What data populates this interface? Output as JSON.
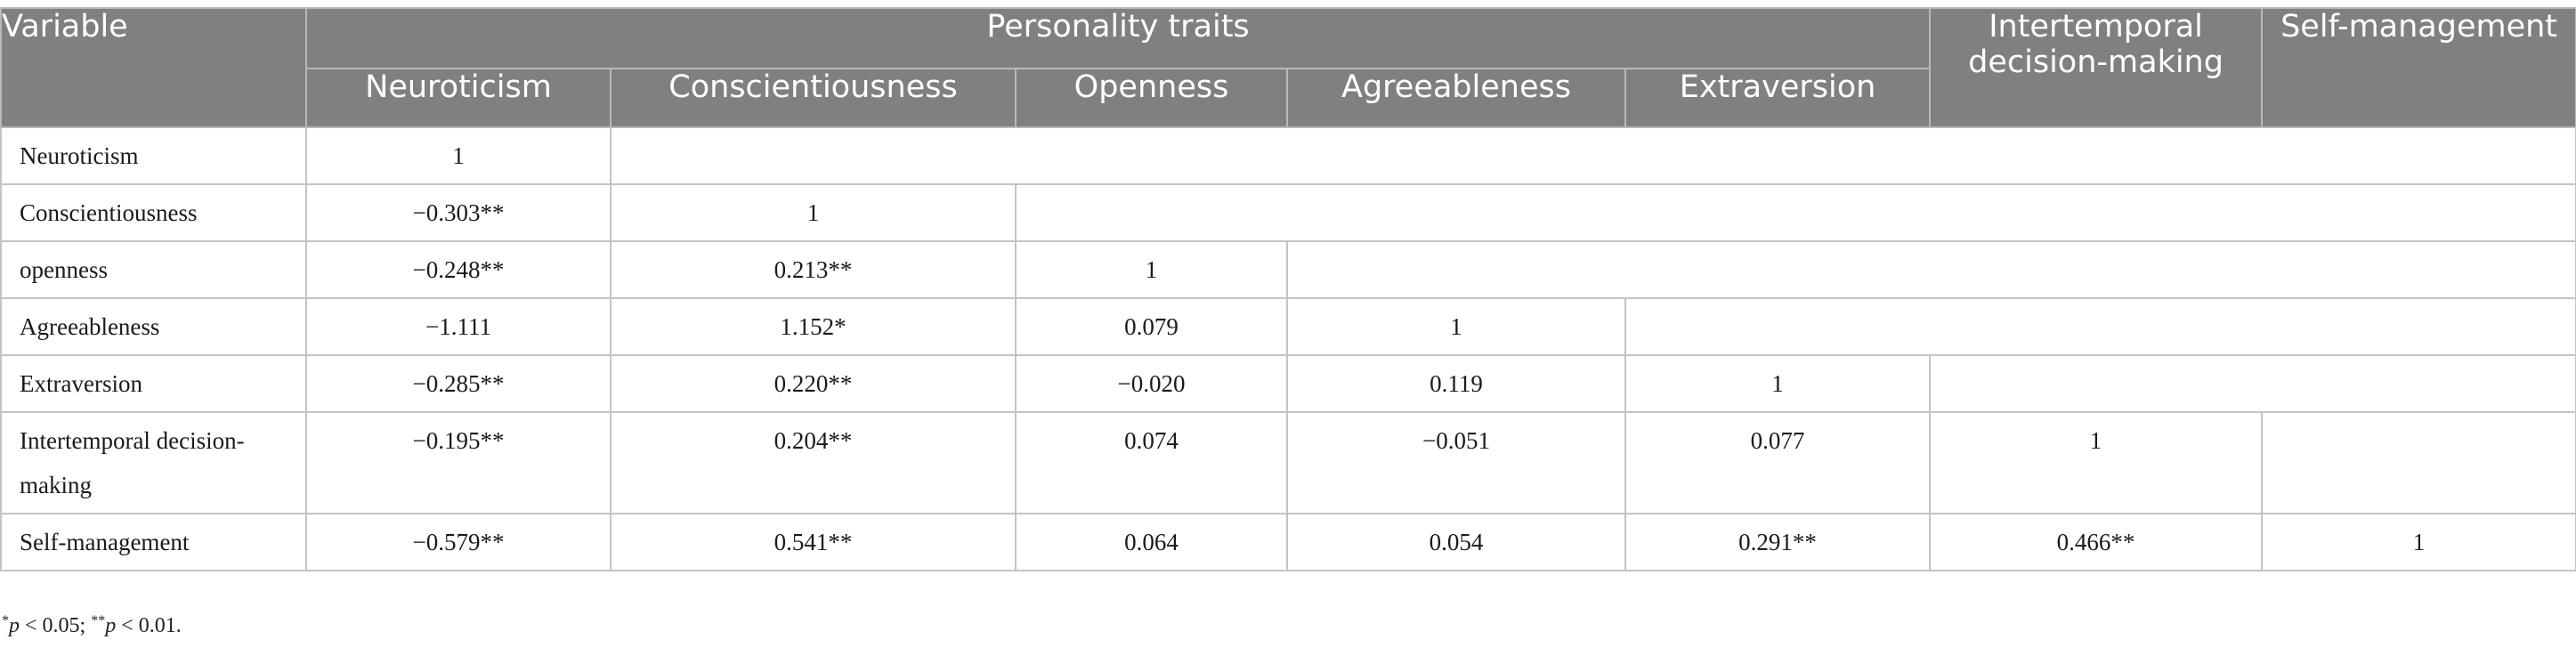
{
  "table": {
    "header": {
      "variable": "Variable",
      "group": "Personality traits",
      "traits": [
        "Neuroticism",
        "Conscientiousness",
        "Openness",
        "Agreeableness",
        "Extraversion"
      ],
      "intertemporal": "Intertemporal decision-making",
      "self_management": "Self-management"
    },
    "rows": [
      {
        "label": "Neuroticism",
        "values": [
          "1"
        ]
      },
      {
        "label": "Conscientiousness",
        "values": [
          "−0.303**",
          "1"
        ]
      },
      {
        "label": "openness",
        "values": [
          "−0.248**",
          "0.213**",
          "1"
        ]
      },
      {
        "label": "Agreeableness",
        "values": [
          "−1.111",
          "1.152*",
          "0.079",
          "1"
        ]
      },
      {
        "label": "Extraversion",
        "values": [
          "−0.285**",
          "0.220**",
          "−0.020",
          "0.119",
          "1"
        ]
      },
      {
        "label": "Intertemporal decision-making",
        "values": [
          "−0.195**",
          "0.204**",
          "0.074",
          "−0.051",
          "0.077",
          "1"
        ]
      },
      {
        "label": "Self-management",
        "values": [
          "−0.579**",
          "0.541**",
          "0.064",
          "0.054",
          "0.291**",
          "0.466**",
          "1"
        ]
      }
    ]
  },
  "footnote": {
    "sig1_mark": "*",
    "sig1_var": "p",
    "sig1_rest": " < 0.05; ",
    "sig2_mark": "**",
    "sig2_var": "p",
    "sig2_rest": " < 0.01."
  }
}
